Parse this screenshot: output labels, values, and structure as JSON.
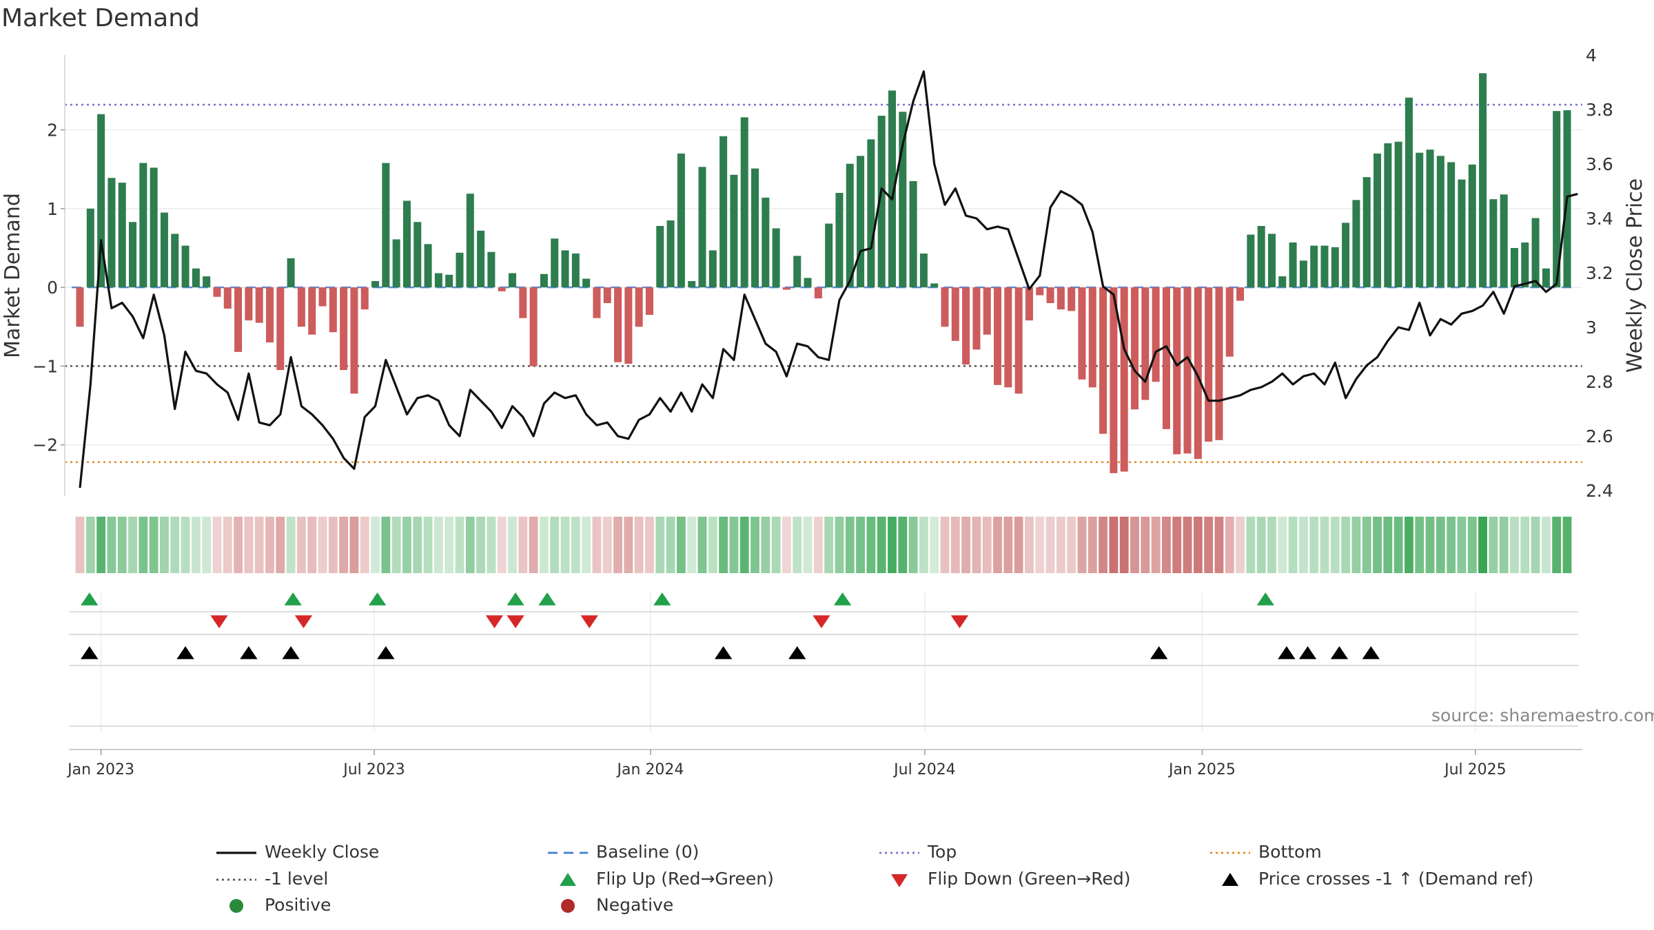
{
  "chart_data": {
    "type": "bar",
    "title": "Market Demand",
    "ylabel_left": "Market Demand",
    "ylabel_right": "Weekly Close Price",
    "source_text": "source: sharemaestro.com",
    "x_start_week_offset": -1,
    "left_ylim": [
      -2.65,
      2.95
    ],
    "left_yticks": [
      -2,
      -1,
      0,
      1,
      2
    ],
    "left_ytick_labels": [
      "−2",
      "−1",
      "0",
      "1",
      "2"
    ],
    "right_ylim": [
      2.38,
      4.0
    ],
    "right_yticks": [
      2.4,
      2.6,
      2.8,
      3.0,
      3.2,
      3.4,
      3.6,
      3.8,
      4.0
    ],
    "right_ytick_labels": [
      "2.4",
      "2.6",
      "2.8",
      "3",
      "3.2",
      "3.4",
      "3.6",
      "3.8",
      "4"
    ],
    "x_ticks": [
      {
        "label": "Jan 2023",
        "week": 1.0
      },
      {
        "label": "Jul 2023",
        "week": 26.9
      },
      {
        "label": "Jan 2024",
        "week": 53.1
      },
      {
        "label": "Jul 2024",
        "week": 79.1
      },
      {
        "label": "Jan 2025",
        "week": 105.4
      },
      {
        "label": "Jul 2025",
        "week": 131.3
      }
    ],
    "levels": {
      "top": 2.32,
      "bottom": -2.22,
      "minus_one": -1.0,
      "baseline": 0
    },
    "demand": [
      -0.5,
      1.0,
      2.2,
      1.39,
      1.33,
      0.83,
      1.58,
      1.52,
      0.95,
      0.68,
      0.53,
      0.24,
      0.14,
      -0.12,
      -0.27,
      -0.82,
      -0.42,
      -0.45,
      -0.7,
      -1.05,
      0.37,
      -0.5,
      -0.6,
      -0.24,
      -0.57,
      -1.05,
      -1.35,
      -0.28,
      0.08,
      1.58,
      0.61,
      1.1,
      0.83,
      0.55,
      0.18,
      0.16,
      0.44,
      1.19,
      0.72,
      0.45,
      -0.05,
      0.18,
      -0.39,
      -1.0,
      0.17,
      0.62,
      0.47,
      0.43,
      0.11,
      -0.39,
      -0.2,
      -0.95,
      -0.97,
      -0.5,
      -0.35,
      0.78,
      0.85,
      1.7,
      0.08,
      1.53,
      0.47,
      1.92,
      1.43,
      2.16,
      1.51,
      1.14,
      0.75,
      -0.03,
      0.4,
      0.12,
      -0.14,
      0.81,
      1.2,
      1.57,
      1.67,
      1.88,
      2.18,
      2.5,
      2.23,
      1.35,
      0.43,
      0.05,
      -0.5,
      -0.68,
      -0.98,
      -0.79,
      -0.6,
      -1.24,
      -1.27,
      -1.35,
      -0.42,
      -0.1,
      -0.2,
      -0.28,
      -0.3,
      -1.17,
      -1.27,
      -1.86,
      -2.36,
      -2.34,
      -1.55,
      -1.43,
      -1.2,
      -1.8,
      -2.12,
      -2.11,
      -2.18,
      -1.96,
      -1.94,
      -0.88,
      -0.17,
      0.67,
      0.78,
      0.68,
      0.14,
      0.57,
      0.34,
      0.53,
      0.53,
      0.51,
      0.82,
      1.11,
      1.4,
      1.7,
      1.83,
      1.85,
      2.41,
      1.71,
      1.75,
      1.67,
      1.59,
      1.37,
      1.56,
      2.72,
      1.12,
      1.18,
      0.5,
      0.57,
      0.88,
      0.24,
      2.24,
      2.25
    ],
    "price": [
      2.41,
      2.79,
      3.32,
      3.07,
      3.09,
      3.04,
      2.96,
      3.12,
      2.97,
      2.7,
      2.91,
      2.84,
      2.83,
      2.79,
      2.76,
      2.66,
      2.83,
      2.65,
      2.64,
      2.68,
      2.89,
      2.71,
      2.68,
      2.64,
      2.59,
      2.52,
      2.48,
      2.67,
      2.71,
      2.88,
      2.78,
      2.68,
      2.74,
      2.75,
      2.73,
      2.64,
      2.6,
      2.77,
      2.73,
      2.69,
      2.63,
      2.71,
      2.67,
      2.6,
      2.72,
      2.76,
      2.74,
      2.75,
      2.68,
      2.64,
      2.65,
      2.6,
      2.59,
      2.66,
      2.68,
      2.74,
      2.69,
      2.76,
      2.69,
      2.79,
      2.74,
      2.92,
      2.88,
      3.12,
      3.03,
      2.94,
      2.91,
      2.82,
      2.94,
      2.93,
      2.89,
      2.88,
      3.1,
      3.17,
      3.28,
      3.29,
      3.51,
      3.47,
      3.67,
      3.83,
      3.94,
      3.6,
      3.45,
      3.51,
      3.41,
      3.4,
      3.36,
      3.37,
      3.36,
      3.25,
      3.14,
      3.19,
      3.44,
      3.5,
      3.48,
      3.45,
      3.35,
      3.15,
      3.12,
      2.92,
      2.84,
      2.8,
      2.91,
      2.93,
      2.86,
      2.89,
      2.82,
      2.73,
      2.73,
      2.74,
      2.75,
      2.77,
      2.78,
      2.8,
      2.83,
      2.79,
      2.82,
      2.83,
      2.79,
      2.87,
      2.74,
      2.81,
      2.86,
      2.89,
      2.95,
      3.0,
      2.99,
      3.09,
      2.97,
      3.03,
      3.01,
      3.05,
      3.06,
      3.08,
      3.13,
      3.05,
      3.15,
      3.16,
      3.17,
      3.13,
      3.16,
      3.48,
      3.49
    ],
    "flip_up_weeks": [
      -0.1,
      19.2,
      27.2,
      40.3,
      43.3,
      54.2,
      71.3,
      111.4
    ],
    "flip_down_weeks": [
      12.2,
      20.2,
      38.3,
      40.3,
      47.3,
      69.3,
      82.4
    ],
    "price_cross_weeks": [
      -0.1,
      9.0,
      15.0,
      19.0,
      28.0,
      60.0,
      67.0,
      101.3,
      113.4,
      115.4,
      118.4,
      121.4
    ],
    "legend": [
      {
        "label": "Weekly Close",
        "marker": "line-solid",
        "color": "#111111"
      },
      {
        "label": "Baseline (0)",
        "marker": "line-dash",
        "color": "#3b7dd8"
      },
      {
        "label": "Top",
        "marker": "line-dot",
        "color": "#7b6fd0"
      },
      {
        "label": "Bottom",
        "marker": "line-dot",
        "color": "#e08a1e"
      },
      {
        "label": "-1 level",
        "marker": "line-dot",
        "color": "#555555"
      },
      {
        "label": "Flip Up (Red→Green)",
        "marker": "triangle-up",
        "color": "#22a04a"
      },
      {
        "label": "Flip Down (Green→Red)",
        "marker": "triangle-down",
        "color": "#d62728"
      },
      {
        "label": "Price crosses -1 ↑ (Demand ref)",
        "marker": "triangle-up",
        "color": "#000000"
      },
      {
        "label": "Positive",
        "marker": "circle",
        "color": "#2a8a3a"
      },
      {
        "label": "Negative",
        "marker": "circle",
        "color": "#b02a2a"
      }
    ],
    "colors": {
      "positive_bar": "#2e7d4f",
      "negative_bar": "#cd5c5c",
      "price_line": "#111111",
      "top_line": "#7b6fd0",
      "bottom_line": "#e08a1e",
      "minus_one_line": "#555555",
      "baseline": "#3b7dd8",
      "flip_up": "#22a04a",
      "flip_down": "#d62728",
      "price_cross": "#000000"
    }
  }
}
